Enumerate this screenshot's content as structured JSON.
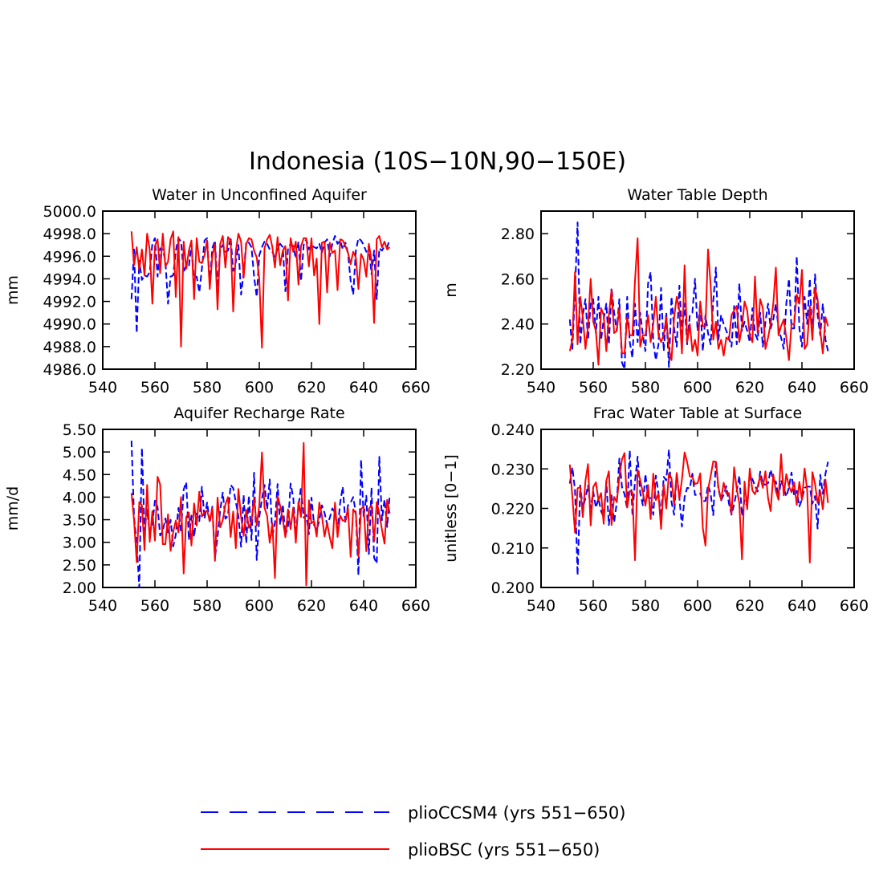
{
  "figure_title": "Indonesia (10S−10N,90−150E)",
  "colors": {
    "ccsm4": "#0000ff",
    "bsc": "#ff0000"
  },
  "legend": [
    {
      "key": "ccsm4",
      "label": "plioCCSM4 (yrs 551−650)",
      "style": "dashed"
    },
    {
      "key": "bsc",
      "label": "plioBSC (yrs 551−650)",
      "style": "solid"
    }
  ],
  "chart_data": [
    {
      "type": "line",
      "title": "Water in Unconfined Aquifer",
      "ylabel": "mm",
      "xlim": [
        540,
        660
      ],
      "ylim": [
        4986.0,
        5000.0
      ],
      "xticks": [
        540,
        560,
        580,
        600,
        620,
        640,
        660
      ],
      "yticks": [
        4986.0,
        4988.0,
        4990.0,
        4992.0,
        4994.0,
        4996.0,
        4998.0,
        5000.0
      ],
      "ytick_labels": [
        "4986.0",
        "4988.0",
        "4990.0",
        "4992.0",
        "4994.0",
        "4996.0",
        "4998.0",
        "5000.0"
      ],
      "x_start": 551,
      "series": [
        {
          "name": "plioCCSM4 (yrs 551−650)",
          "key": "ccsm4",
          "style": "dashed",
          "values": [
            4992.2,
            4996.6,
            4989.2,
            4995.6,
            4993.9,
            4994.3,
            4994.2,
            4994.6,
            4997.1,
            4997.6,
            4994.2,
            4996.7,
            4996.6,
            4995.6,
            4991.8,
            4994.2,
            4994.3,
            4996.5,
            4997.6,
            4997.3,
            4994.6,
            4995.2,
            4995.1,
            4997.1,
            4993.6,
            4994.2,
            4992.8,
            4994.9,
            4997.4,
            4997.6,
            4993.6,
            4996.7,
            4997.4,
            4993.2,
            4996.6,
            4997.0,
            4996.4,
            4996.5,
            4997.7,
            4994.7,
            4995.5,
            4997.0,
            4992.6,
            4994.5,
            4997.3,
            4997.2,
            4996.8,
            4994.2,
            4992.4,
            4996.1,
            4996.8,
            4997.3,
            4997.1,
            4996.6,
            4996.4,
            4995.9,
            4996.7,
            4997.1,
            4996.8,
            4992.9,
            4996.7,
            4997.1,
            4996.9,
            4995.8,
            4997.3,
            4993.8,
            4997.0,
            4997.5,
            4996.6,
            4997.0,
            4996.8,
            4996.7,
            4997.1,
            4996.3,
            4997.2,
            4997.5,
            4996.0,
            4997.1,
            4997.8,
            4997.1,
            4997.4,
            4996.6,
            4997.2,
            4996.3,
            4993.8,
            4992.6,
            4996.5,
            4997.6,
            4997.4,
            4997.0,
            4996.4,
            4996.9,
            4994.4,
            4996.5,
            4992.2,
            4996.7,
            4996.5,
            4996.9,
            4996.8,
            4997.5
          ]
        },
        {
          "name": "plioBSC (yrs 551−650)",
          "key": "bsc",
          "style": "solid",
          "values": [
            4998.2,
            4995.2,
            4996.8,
            4994.8,
            4996.6,
            4994.3,
            4998.0,
            4996.6,
            4991.8,
            4996.9,
            4997.5,
            4994.5,
            4998.0,
            4995.1,
            4995.5,
            4997.5,
            4998.2,
            4992.4,
            4997.7,
            4988.0,
            4997.3,
            4994.9,
            4996.5,
            4997.4,
            4992.2,
            4997.6,
            4995.5,
            4995.4,
            4996.1,
            4997.4,
            4993.1,
            4996.0,
            4997.1,
            4991.3,
            4997.1,
            4997.8,
            4995.0,
            4997.7,
            4997.4,
            4991.1,
            4996.5,
            4998.0,
            4997.3,
            4994.1,
            4997.1,
            4997.6,
            4997.5,
            4996.5,
            4995.9,
            4994.0,
            4987.9,
            4996.7,
            4997.5,
            4997.9,
            4996.8,
            4995.0,
            4997.7,
            4995.2,
            4996.5,
            4996.9,
            4992.1,
            4997.6,
            4996.4,
            4997.3,
            4993.5,
            4996.9,
            4997.6,
            4997.6,
            4995.1,
            4997.6,
            4994.3,
            4995.8,
            4990.0,
            4997.2,
            4997.3,
            4992.8,
            4997.2,
            4996.3,
            4996.5,
            4993.0,
            4997.5,
            4997.4,
            4996.9,
            4996.3,
            4995.3,
            4996.4,
            4995.9,
            4993.1,
            4996.2,
            4995.7,
            4994.2,
            4997.1,
            4995.6,
            4990.1,
            4997.5,
            4997.8,
            4996.8,
            4997.3,
            4996.6,
            4996.8
          ]
        }
      ]
    },
    {
      "type": "line",
      "title": "Water Table Depth",
      "ylabel": "m",
      "xlim": [
        540,
        660
      ],
      "ylim": [
        2.2,
        2.9
      ],
      "xticks": [
        540,
        560,
        580,
        600,
        620,
        640,
        660
      ],
      "yticks": [
        2.2,
        2.4,
        2.6,
        2.8
      ],
      "ytick_labels": [
        "2.20",
        "2.40",
        "2.60",
        "2.80"
      ],
      "x_start": 551,
      "series": [
        {
          "name": "plioCCSM4 (yrs 551−650)",
          "key": "ccsm4",
          "style": "dashed",
          "values": [
            2.42,
            2.29,
            2.55,
            2.85,
            2.31,
            2.44,
            2.51,
            2.33,
            2.49,
            2.51,
            2.36,
            2.52,
            2.33,
            2.42,
            2.49,
            2.31,
            2.56,
            2.45,
            2.37,
            2.51,
            2.23,
            2.2,
            2.52,
            2.32,
            2.25,
            2.49,
            2.32,
            2.45,
            2.35,
            2.28,
            2.58,
            2.63,
            2.32,
            2.24,
            2.31,
            2.56,
            2.28,
            2.45,
            2.21,
            2.52,
            2.38,
            2.3,
            2.57,
            2.36,
            2.49,
            2.31,
            2.44,
            2.45,
            2.6,
            2.37,
            2.49,
            2.28,
            2.44,
            2.36,
            2.31,
            2.5,
            2.65,
            2.33,
            2.44,
            2.4,
            2.37,
            2.34,
            2.3,
            2.48,
            2.31,
            2.58,
            2.37,
            2.41,
            2.37,
            2.32,
            2.47,
            2.36,
            2.33,
            2.45,
            2.3,
            2.41,
            2.49,
            2.38,
            2.42,
            2.49,
            2.38,
            2.34,
            2.29,
            2.49,
            2.6,
            2.38,
            2.38,
            2.7,
            2.38,
            2.3,
            2.52,
            2.4,
            2.6,
            2.33,
            2.62,
            2.44,
            2.35,
            2.49,
            2.33,
            2.28
          ]
        },
        {
          "name": "plioBSC (yrs 551−650)",
          "key": "bsc",
          "style": "solid",
          "values": [
            2.28,
            2.33,
            2.63,
            2.31,
            2.52,
            2.43,
            2.29,
            2.39,
            2.6,
            2.41,
            2.37,
            2.22,
            2.47,
            2.44,
            2.28,
            2.44,
            2.55,
            2.36,
            2.37,
            2.47,
            2.27,
            2.27,
            2.43,
            2.35,
            2.35,
            2.59,
            2.78,
            2.3,
            2.35,
            2.35,
            2.44,
            2.32,
            2.4,
            2.52,
            2.35,
            2.32,
            2.35,
            2.43,
            2.29,
            2.24,
            2.43,
            2.52,
            2.46,
            2.27,
            2.66,
            2.32,
            2.4,
            2.28,
            2.33,
            2.26,
            2.5,
            2.39,
            2.39,
            2.73,
            2.57,
            2.33,
            2.41,
            2.29,
            2.33,
            2.26,
            2.34,
            2.33,
            2.44,
            2.46,
            2.48,
            2.32,
            2.39,
            2.5,
            2.46,
            2.35,
            2.32,
            2.61,
            2.36,
            2.51,
            2.47,
            2.29,
            2.34,
            2.4,
            2.49,
            2.65,
            2.35,
            2.39,
            2.42,
            2.34,
            2.24,
            2.4,
            2.4,
            2.53,
            2.49,
            2.64,
            2.29,
            2.31,
            2.48,
            2.33,
            2.56,
            2.51,
            2.37,
            2.27,
            2.43,
            2.39
          ]
        }
      ]
    },
    {
      "type": "line",
      "title": "Aquifer Recharge Rate",
      "ylabel": "mm/d",
      "xlim": [
        540,
        660
      ],
      "ylim": [
        2.0,
        5.5
      ],
      "xticks": [
        540,
        560,
        580,
        600,
        620,
        640,
        660
      ],
      "yticks": [
        2.0,
        2.5,
        3.0,
        3.5,
        4.0,
        4.5,
        5.0,
        5.5
      ],
      "ytick_labels": [
        "2.00",
        "2.50",
        "3.00",
        "3.50",
        "4.00",
        "4.50",
        "5.00",
        "5.50"
      ],
      "x_start": 551,
      "series": [
        {
          "name": "plioCCSM4 (yrs 551−650)",
          "key": "ccsm4",
          "style": "dashed",
          "values": [
            5.25,
            3.54,
            2.98,
            2.0,
            5.09,
            3.25,
            3.72,
            3.19,
            3.41,
            3.92,
            3.78,
            3.15,
            3.25,
            3.53,
            3.17,
            3.5,
            2.91,
            3.17,
            3.76,
            3.23,
            4.17,
            4.33,
            3.05,
            3.59,
            3.12,
            3.64,
            3.47,
            4.23,
            3.52,
            3.88,
            3.43,
            3.79,
            2.66,
            3.12,
            3.71,
            4.1,
            3.52,
            3.59,
            4.27,
            4.2,
            3.89,
            3.58,
            2.9,
            4.05,
            2.98,
            4.03,
            3.05,
            4.54,
            2.61,
            3.56,
            3.97,
            4.27,
            3.73,
            4.39,
            3.13,
            3.43,
            4.29,
            3.39,
            3.84,
            3.15,
            3.36,
            4.3,
            3.99,
            3.17,
            3.8,
            4.23,
            3.55,
            3.61,
            3.18,
            3.99,
            3.38,
            3.27,
            3.48,
            3.82,
            3.65,
            3.39,
            3.54,
            3.75,
            3.66,
            3.29,
            3.88,
            4.23,
            3.43,
            3.82,
            3.88,
            4.0,
            3.64,
            2.27,
            4.83,
            3.55,
            4.03,
            2.74,
            4.21,
            2.66,
            2.53,
            4.89,
            3.49,
            3.95,
            3.34,
            4.06
          ]
        },
        {
          "name": "plioBSC (yrs 551−650)",
          "key": "bsc",
          "style": "solid",
          "values": [
            4.09,
            3.49,
            2.56,
            3.89,
            3.82,
            2.83,
            4.27,
            3.01,
            3.69,
            3.04,
            4.45,
            4.28,
            2.96,
            2.96,
            3.62,
            2.81,
            3.23,
            3.48,
            3.22,
            4.0,
            2.31,
            3.56,
            3.66,
            2.93,
            3.86,
            3.37,
            4.12,
            3.57,
            3.66,
            3.71,
            3.47,
            3.76,
            2.59,
            3.99,
            3.33,
            3.49,
            3.84,
            4.0,
            3.12,
            3.68,
            2.87,
            4.18,
            3.56,
            3.14,
            3.72,
            3.32,
            3.45,
            3.99,
            3.37,
            3.82,
            4.99,
            3.77,
            3.58,
            2.99,
            3.42,
            2.21,
            4.03,
            3.81,
            3.5,
            3.11,
            3.73,
            3.29,
            3.77,
            2.99,
            3.9,
            3.56,
            5.2,
            2.05,
            3.93,
            3.42,
            3.47,
            3.13,
            3.88,
            3.59,
            3.13,
            3.43,
            3.11,
            2.87,
            3.88,
            3.12,
            3.59,
            3.48,
            3.49,
            3.75,
            2.68,
            3.73,
            3.64,
            2.68,
            3.74,
            3.79,
            2.8,
            3.74,
            3.82,
            3.02,
            3.89,
            3.64,
            3.28,
            2.97,
            3.94,
            3.64
          ]
        }
      ]
    },
    {
      "type": "line",
      "title": "Frac Water Table at Surface",
      "ylabel": "unitless [0−1]",
      "xlim": [
        540,
        660
      ],
      "ylim": [
        0.2,
        0.24
      ],
      "xticks": [
        540,
        560,
        580,
        600,
        620,
        640,
        660
      ],
      "yticks": [
        0.2,
        0.21,
        0.22,
        0.23,
        0.24
      ],
      "ytick_labels": [
        "0.200",
        "0.210",
        "0.220",
        "0.230",
        "0.240"
      ],
      "x_start": 551,
      "series": [
        {
          "name": "plioCCSM4 (yrs 551−650)",
          "key": "ccsm4",
          "style": "dashed",
          "values": [
            0.2263,
            0.2304,
            0.2246,
            0.2031,
            0.2258,
            0.2201,
            0.2226,
            0.2258,
            0.22,
            0.2242,
            0.2202,
            0.2225,
            0.2193,
            0.2178,
            0.2268,
            0.2158,
            0.2233,
            0.2165,
            0.2214,
            0.2326,
            0.2254,
            0.2236,
            0.2199,
            0.2347,
            0.2186,
            0.2268,
            0.2331,
            0.224,
            0.2208,
            0.2287,
            0.2228,
            0.2226,
            0.2184,
            0.2283,
            0.2239,
            0.2177,
            0.228,
            0.2271,
            0.2349,
            0.2216,
            0.2184,
            0.2289,
            0.2226,
            0.2154,
            0.2229,
            0.2252,
            0.2251,
            0.2288,
            0.2234,
            0.2235,
            0.2238,
            0.2218,
            0.2219,
            0.2259,
            0.2237,
            0.2183,
            0.2322,
            0.2248,
            0.222,
            0.2235,
            0.2256,
            0.2213,
            0.2184,
            0.2211,
            0.2244,
            0.2283,
            0.2181,
            0.2221,
            0.2205,
            0.2285,
            0.2274,
            0.2257,
            0.2243,
            0.2293,
            0.2262,
            0.226,
            0.2264,
            0.2298,
            0.227,
            0.2268,
            0.2226,
            0.2271,
            0.2252,
            0.223,
            0.2253,
            0.2291,
            0.2231,
            0.2244,
            0.2205,
            0.2223,
            0.2252,
            0.2255,
            0.2255,
            0.2212,
            0.2231,
            0.2149,
            0.2285,
            0.2237,
            0.2288,
            0.2318
          ]
        },
        {
          "name": "plioBSC (yrs 551−650)",
          "key": "bsc",
          "style": "solid",
          "values": [
            0.2311,
            0.223,
            0.2139,
            0.2251,
            0.2254,
            0.2178,
            0.227,
            0.2312,
            0.2157,
            0.2254,
            0.2266,
            0.2221,
            0.2239,
            0.2161,
            0.227,
            0.2294,
            0.2158,
            0.2229,
            0.2216,
            0.228,
            0.2324,
            0.234,
            0.2202,
            0.2244,
            0.2241,
            0.2069,
            0.2298,
            0.2272,
            0.224,
            0.2207,
            0.2259,
            0.2173,
            0.2288,
            0.2221,
            0.2237,
            0.2148,
            0.2261,
            0.22,
            0.2289,
            0.2276,
            0.221,
            0.229,
            0.2224,
            0.2273,
            0.2342,
            0.2317,
            0.2281,
            0.2279,
            0.2262,
            0.2264,
            0.2289,
            0.2151,
            0.2106,
            0.2248,
            0.2282,
            0.2319,
            0.2318,
            0.2253,
            0.2222,
            0.2265,
            0.2238,
            0.2239,
            0.2186,
            0.2304,
            0.2249,
            0.2213,
            0.2071,
            0.2268,
            0.2198,
            0.2301,
            0.2245,
            0.2236,
            0.2255,
            0.2282,
            0.2252,
            0.2294,
            0.2226,
            0.2193,
            0.2286,
            0.2244,
            0.2222,
            0.2337,
            0.2233,
            0.2287,
            0.2256,
            0.2241,
            0.2266,
            0.2209,
            0.2267,
            0.2222,
            0.2301,
            0.2246,
            0.2063,
            0.2292,
            0.2262,
            0.2214,
            0.2244,
            0.2198,
            0.2273,
            0.2214
          ]
        }
      ]
    }
  ]
}
